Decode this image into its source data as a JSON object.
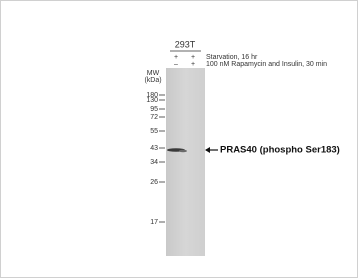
{
  "header": {
    "cell_line": "293T",
    "conditions": [
      {
        "signs": [
          "+",
          "+"
        ],
        "label": "Starvation, 16 hr"
      },
      {
        "signs": [
          "–",
          "+"
        ],
        "label": "100 nM Rapamycin and Insulin, 30 min"
      }
    ]
  },
  "ladder": {
    "title": "MW",
    "unit": "(kDa)",
    "markers": [
      "180",
      "130",
      "95",
      "72",
      "55",
      "43",
      "34",
      "26",
      "17"
    ]
  },
  "band_label": "PRAS40 (phospho Ser183)"
}
